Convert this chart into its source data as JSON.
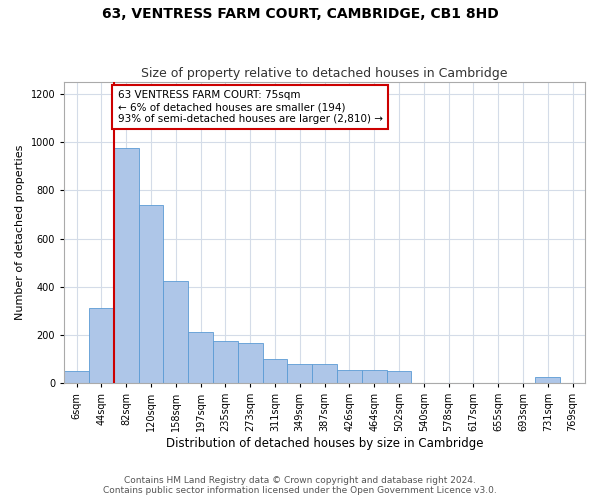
{
  "title": "63, VENTRESS FARM COURT, CAMBRIDGE, CB1 8HD",
  "subtitle": "Size of property relative to detached houses in Cambridge",
  "xlabel": "Distribution of detached houses by size in Cambridge",
  "ylabel": "Number of detached properties",
  "footer_line1": "Contains HM Land Registry data © Crown copyright and database right 2024.",
  "footer_line2": "Contains public sector information licensed under the Open Government Licence v3.0.",
  "annotation_line1": "63 VENTRESS FARM COURT: 75sqm",
  "annotation_line2": "← 6% of detached houses are smaller (194)",
  "annotation_line3": "93% of semi-detached houses are larger (2,810) →",
  "bar_color": "#aec6e8",
  "bar_edge_color": "#5b9bd5",
  "ref_line_color": "#cc0000",
  "annotation_edge_color": "#cc0000",
  "categories": [
    "6sqm",
    "44sqm",
    "82sqm",
    "120sqm",
    "158sqm",
    "197sqm",
    "235sqm",
    "273sqm",
    "311sqm",
    "349sqm",
    "387sqm",
    "426sqm",
    "464sqm",
    "502sqm",
    "540sqm",
    "578sqm",
    "617sqm",
    "655sqm",
    "693sqm",
    "731sqm",
    "769sqm"
  ],
  "values": [
    50,
    310,
    975,
    740,
    425,
    210,
    175,
    165,
    100,
    80,
    80,
    55,
    55,
    50,
    0,
    0,
    0,
    0,
    0,
    25,
    0
  ],
  "ylim": [
    0,
    1250
  ],
  "yticks": [
    0,
    200,
    400,
    600,
    800,
    1000,
    1200
  ],
  "ref_line_x": 1.5,
  "background_color": "#ffffff",
  "grid_color": "#d4dce8",
  "title_fontsize": 10,
  "subtitle_fontsize": 9,
  "ylabel_fontsize": 8,
  "xlabel_fontsize": 8.5,
  "tick_fontsize": 7,
  "annotation_fontsize": 7.5,
  "footer_fontsize": 6.5
}
